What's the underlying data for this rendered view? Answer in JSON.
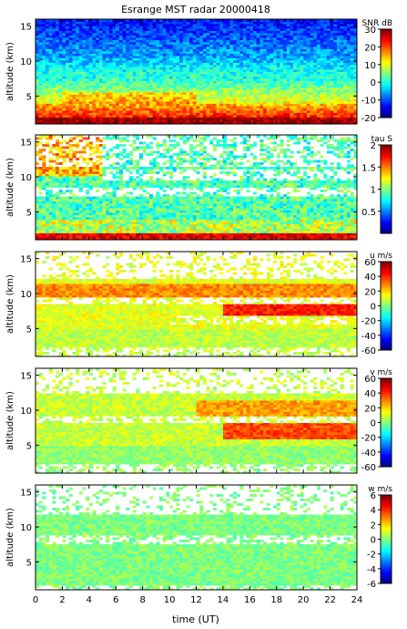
{
  "chart_data": {
    "type": "heatmap",
    "title": "Esrange MST radar 20000418",
    "xlabel": "time (UT)",
    "xlim": [
      0,
      24
    ],
    "xticks": [
      0,
      2,
      4,
      6,
      8,
      10,
      12,
      14,
      16,
      18,
      20,
      22,
      24
    ],
    "ylabel": "altitude (km)",
    "ylim": [
      1,
      16
    ],
    "yticks": [
      5,
      10,
      15
    ],
    "colormap": "jet",
    "panels": [
      {
        "id": "snr",
        "colorbar_label": "SNR dB",
        "clim": [
          -20,
          30
        ],
        "cticks": [
          -20,
          -10,
          0,
          10,
          20,
          30
        ]
      },
      {
        "id": "tau",
        "colorbar_label": "tau S",
        "clim": [
          0,
          2
        ],
        "cticks": [
          0.5,
          1,
          1.5,
          2
        ]
      },
      {
        "id": "u",
        "colorbar_label": "u m/s",
        "clim": [
          -60,
          60
        ],
        "cticks": [
          -60,
          -40,
          -20,
          0,
          20,
          40,
          60
        ]
      },
      {
        "id": "v",
        "colorbar_label": "v m/s",
        "clim": [
          -60,
          60
        ],
        "cticks": [
          -60,
          -40,
          -20,
          0,
          20,
          40,
          60
        ]
      },
      {
        "id": "w",
        "colorbar_label": "w m/s",
        "clim": [
          -6,
          6
        ],
        "cticks": [
          -6,
          -4,
          -2,
          0,
          2,
          4,
          6
        ]
      }
    ]
  },
  "colors": {
    "axis": "#000000",
    "background": "#ffffff"
  }
}
